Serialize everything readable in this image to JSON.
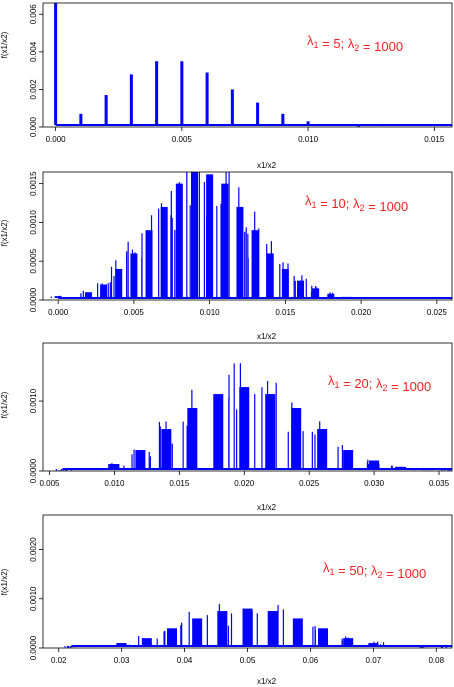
{
  "chart_data": [
    {
      "type": "bar",
      "xlabel": "x1/x2",
      "ylabel": "f(x1/x2)",
      "xlim": [
        -0.0005,
        0.0157
      ],
      "ylim": [
        0,
        0.0066
      ],
      "xticks": [
        "0.000",
        "0.005",
        "0.010",
        "0.015"
      ],
      "xtick_values": [
        0.0,
        0.005,
        0.01,
        0.015
      ],
      "yticks": [
        "0.000",
        "0.002",
        "0.004",
        "0.006"
      ],
      "ytick_values": [
        0.0,
        0.002,
        0.004,
        0.006
      ],
      "annotation": {
        "lambda1": "5",
        "lambda2": "1000"
      },
      "color": "#0000ff",
      "series": [
        {
          "x": [
            0.0,
            0.001,
            0.002,
            0.003,
            0.004,
            0.005,
            0.006,
            0.007,
            0.008,
            0.009,
            0.01,
            0.011,
            0.012,
            0.013,
            0.014,
            0.015
          ],
          "values": [
            0.0066,
            0.0007,
            0.0017,
            0.0028,
            0.0035,
            0.0035,
            0.0029,
            0.002,
            0.0013,
            0.0007,
            0.0003,
            0.0001,
            5e-05,
            2e-05,
            1e-05,
            0.0
          ]
        }
      ]
    },
    {
      "type": "bar",
      "xlabel": "x1/x2",
      "ylabel": "f(x1/x2)",
      "xlim": [
        -0.001,
        0.026
      ],
      "ylim": [
        0,
        0.00165
      ],
      "xticks": [
        "0.000",
        "0.005",
        "0.010",
        "0.015",
        "0.020",
        "0.025"
      ],
      "xtick_values": [
        0.0,
        0.005,
        0.01,
        0.015,
        0.02,
        0.025
      ],
      "yticks": [
        "0.0000",
        "0.0005",
        "0.0010",
        "0.0015"
      ],
      "ytick_values": [
        0.0,
        0.0005,
        0.001,
        0.0015
      ],
      "annotation": {
        "lambda1": "10",
        "lambda2": "1000"
      },
      "color": "#0000ff",
      "series": [
        {
          "x": [
            0.0,
            0.001,
            0.002,
            0.003,
            0.004,
            0.005,
            0.006,
            0.007,
            0.008,
            0.009,
            0.01,
            0.011,
            0.012,
            0.013,
            0.014,
            0.015,
            0.016,
            0.017,
            0.018,
            0.019,
            0.02
          ],
          "values": [
            5e-05,
            3e-05,
            0.0001,
            0.0002,
            0.0004,
            0.0006,
            0.0009,
            0.0012,
            0.0015,
            0.00165,
            0.00162,
            0.0015,
            0.0012,
            0.0009,
            0.0006,
            0.0004,
            0.00025,
            0.00015,
            8e-05,
            4e-05,
            2e-05
          ]
        }
      ]
    },
    {
      "type": "bar",
      "xlabel": "x1/x2",
      "ylabel": "f(x1/x2)",
      "xlim": [
        0.0045,
        0.036
      ],
      "ylim": [
        0,
        0.00183
      ],
      "xticks": [
        "0.005",
        "0.010",
        "0.015",
        "0.020",
        "0.025",
        "0.030",
        "0.035"
      ],
      "xtick_values": [
        0.005,
        0.01,
        0.015,
        0.02,
        0.025,
        0.03,
        0.035
      ],
      "yticks": [
        "0.0000",
        "0.0010"
      ],
      "ytick_values": [
        0.0,
        0.001
      ],
      "annotation": {
        "lambda1": "20",
        "lambda2": "1000"
      },
      "color": "#0000ff",
      "series": [
        {
          "x": [
            0.006,
            0.008,
            0.01,
            0.012,
            0.014,
            0.016,
            0.018,
            0.02,
            0.022,
            0.024,
            0.026,
            0.028,
            0.03,
            0.032,
            0.034,
            0.036
          ],
          "values": [
            1e-05,
            3e-05,
            0.0001,
            0.0003,
            0.0006,
            0.0009,
            0.0011,
            0.0012,
            0.0011,
            0.0009,
            0.0006,
            0.0003,
            0.00015,
            6e-05,
            2e-05,
            1e-05
          ]
        }
      ]
    },
    {
      "type": "bar",
      "xlabel": "x1/x2",
      "ylabel": "f(x1/x2)",
      "xlim": [
        0.0175,
        0.0825
      ],
      "ylim": [
        0,
        0.0027
      ],
      "xticks": [
        "0.02",
        "0.03",
        "0.04",
        "0.05",
        "0.06",
        "0.07",
        "0.08"
      ],
      "xtick_values": [
        0.02,
        0.03,
        0.04,
        0.05,
        0.06,
        0.07,
        0.08
      ],
      "yticks": [
        "0.0000",
        "0.0010",
        "0.0020"
      ],
      "ytick_values": [
        0.0,
        0.001,
        0.002
      ],
      "annotation": {
        "lambda1": "50",
        "lambda2": "1000"
      },
      "color": "#0000ff",
      "series": [
        {
          "x": [
            0.022,
            0.026,
            0.03,
            0.034,
            0.038,
            0.042,
            0.046,
            0.05,
            0.054,
            0.058,
            0.062,
            0.066,
            0.07,
            0.074,
            0.078,
            0.082
          ],
          "values": [
            1e-05,
            3e-05,
            0.0001,
            0.0002,
            0.0004,
            0.0006,
            0.00075,
            0.0008,
            0.00075,
            0.0006,
            0.0004,
            0.0002,
            0.0001,
            4e-05,
            1e-05,
            0.0
          ]
        }
      ]
    }
  ]
}
